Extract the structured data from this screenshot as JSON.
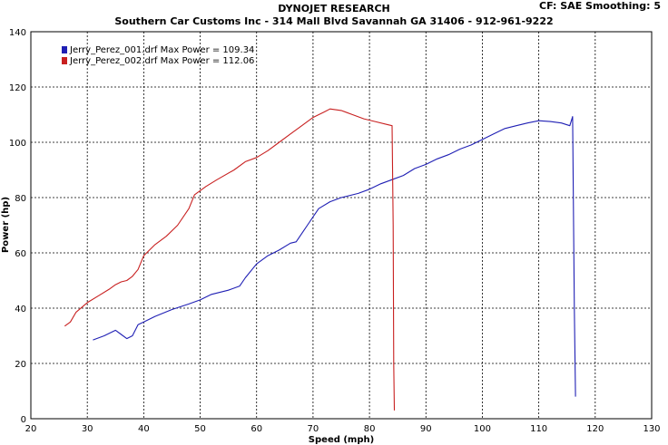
{
  "header": {
    "line1": "DYNOJET RESEARCH",
    "line2": "Southern Car Customs Inc  - 314 Mall Blvd Savannah GA 31406 - 912-961-9222",
    "settings": "CF: SAE  Smoothing: 5"
  },
  "chart_data": {
    "type": "line",
    "title": "",
    "xlabel": "Speed (mph)",
    "ylabel": "Power (hp)",
    "xlim": [
      20,
      130
    ],
    "ylim": [
      0,
      140
    ],
    "xticks": [
      20,
      30,
      40,
      50,
      60,
      70,
      80,
      90,
      100,
      110,
      120,
      130
    ],
    "yticks": [
      0,
      20,
      40,
      60,
      80,
      100,
      120,
      140
    ],
    "grid": true,
    "legend_position": "top-left",
    "series": [
      {
        "name": "Jerry_Perez_001.drf Max Power = 109.34",
        "color": "#1f1fb4",
        "x": [
          31,
          33,
          35,
          36,
          37,
          38,
          39,
          40,
          42,
          45,
          48,
          50,
          52,
          55,
          57,
          58,
          60,
          62,
          64,
          66,
          67,
          69,
          71,
          73,
          75,
          78,
          80,
          82,
          84,
          86,
          88,
          90,
          92,
          94,
          96,
          98,
          100,
          102,
          104,
          106,
          108,
          110,
          112,
          114,
          115.5,
          116,
          116.3,
          116.5
        ],
        "y": [
          28.5,
          30,
          32,
          30.5,
          29,
          30,
          34,
          35,
          37,
          39.5,
          41.5,
          43,
          45,
          46.5,
          48,
          51,
          56,
          59,
          61,
          63.5,
          64,
          70,
          76,
          78.5,
          80,
          81.5,
          83,
          85,
          86.5,
          88,
          90.5,
          92,
          94,
          95.5,
          97.5,
          99,
          101,
          103,
          105,
          106,
          107,
          107.8,
          107.5,
          107,
          106,
          109.3,
          40,
          8
        ]
      },
      {
        "name": "Jerry_Perez_002.drf Max Power = 112.06",
        "color": "#c82020",
        "x": [
          26,
          27,
          28,
          30,
          32,
          34,
          35,
          36,
          37,
          38,
          39,
          40,
          42,
          44,
          46,
          48,
          49,
          51,
          53,
          56,
          58,
          60,
          62,
          64,
          66,
          68,
          70,
          72,
          73,
          75,
          77,
          79,
          81,
          83,
          84,
          84.2,
          84.3,
          84.4
        ],
        "y": [
          33.5,
          35,
          38.5,
          42,
          44.5,
          47,
          48.5,
          49.5,
          50,
          51.5,
          54,
          59,
          63,
          66,
          70,
          76,
          81,
          84,
          86.5,
          90,
          93,
          94.5,
          97,
          100,
          103,
          106,
          109,
          111,
          112.06,
          111.5,
          110,
          108.5,
          107.5,
          106.5,
          106,
          70,
          20,
          3
        ]
      }
    ]
  }
}
